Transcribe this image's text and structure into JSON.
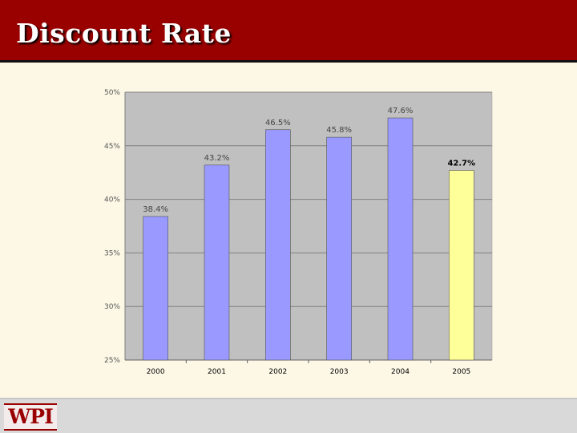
{
  "slide": {
    "title": "Discount Rate",
    "logo_text": "WPI"
  },
  "colors": {
    "header": "#990000",
    "background": "#fdf8e6",
    "plot_area": "#c0c0c0",
    "bar": "#9999ff",
    "bar_highlight": "#ffff99"
  },
  "chart_data": {
    "type": "bar",
    "categories": [
      "2000",
      "2001",
      "2002",
      "2003",
      "2004",
      "2005"
    ],
    "values": [
      38.4,
      43.2,
      46.5,
      45.8,
      47.6,
      42.7
    ],
    "data_labels": [
      "38.4%",
      "43.2%",
      "46.5%",
      "45.8%",
      "47.6%",
      "42.7%"
    ],
    "highlight_index": 5,
    "ylim": [
      25,
      50
    ],
    "yticks": [
      25,
      30,
      35,
      40,
      45,
      50
    ],
    "ytick_labels": [
      "25%",
      "30%",
      "35%",
      "40%",
      "45%",
      "50%"
    ],
    "grid": true,
    "title": "",
    "xlabel": "",
    "ylabel": ""
  }
}
